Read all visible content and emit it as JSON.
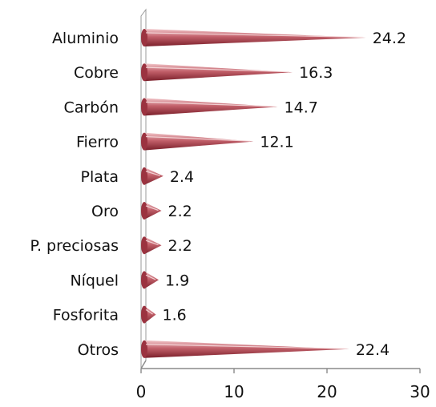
{
  "chart_data": {
    "type": "bar",
    "orientation": "horizontal",
    "style": "3d-cone",
    "categories": [
      "Aluminio",
      "Cobre",
      "Carbón",
      "Fierro",
      "Plata",
      "Oro",
      "P. preciosas",
      "Níquel",
      "Fosforita",
      "Otros"
    ],
    "values": [
      24.2,
      16.3,
      14.7,
      12.1,
      2.4,
      2.2,
      2.2,
      1.9,
      1.6,
      22.4
    ],
    "value_labels": [
      "24.2",
      "16.3",
      "14.7",
      "12.1",
      "2.4",
      "2.2",
      "2.2",
      "1.9",
      "1.6",
      "22.4"
    ],
    "xlim": [
      0,
      30
    ],
    "xticks": [
      0,
      10,
      20,
      30
    ],
    "xtick_labels": [
      "0",
      "10",
      "20",
      "30"
    ],
    "title": "",
    "xlabel": "",
    "ylabel": "",
    "grid": false,
    "legend": "none",
    "colors": {
      "cone_light": "#f2c7cb",
      "cone_mid": "#c2606a",
      "cone_dark": "#7a1f2a"
    }
  }
}
